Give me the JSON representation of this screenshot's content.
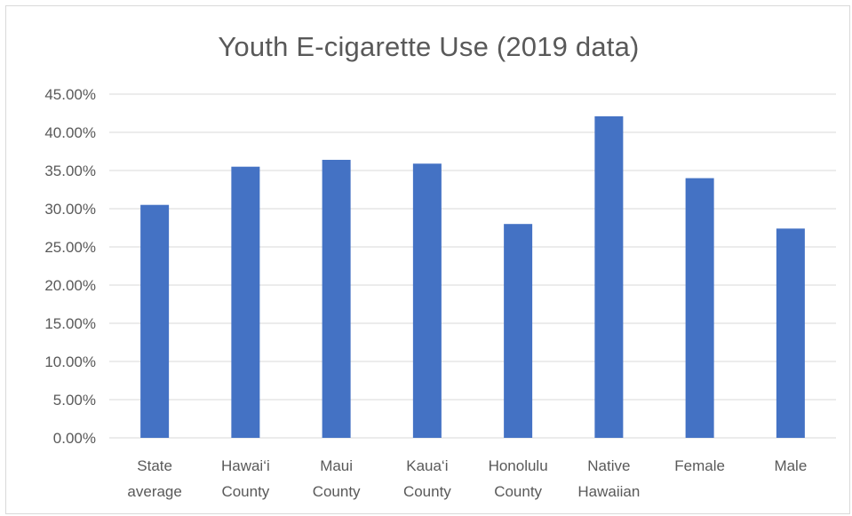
{
  "chart_data": {
    "type": "bar",
    "title": "Youth E-cigarette Use (2019 data)",
    "categories": [
      [
        "State",
        "average"
      ],
      [
        "Hawai‘i",
        "County"
      ],
      [
        "Maui",
        "County"
      ],
      [
        "Kaua‘i",
        "County"
      ],
      [
        "Honolulu",
        "County"
      ],
      [
        "Native",
        "Hawaiian"
      ],
      [
        "Female"
      ],
      [
        "Male"
      ]
    ],
    "values": [
      30.5,
      35.5,
      36.4,
      35.9,
      28.0,
      42.1,
      34.0,
      27.4
    ],
    "ylim": [
      0,
      45
    ],
    "yticks": [
      "0.00%",
      "5.00%",
      "10.00%",
      "15.00%",
      "20.00%",
      "25.00%",
      "30.00%",
      "35.00%",
      "40.00%",
      "45.00%"
    ],
    "ytick_values": [
      0,
      5,
      10,
      15,
      20,
      25,
      30,
      35,
      40,
      45
    ],
    "grid": true,
    "bar_color": "#4472c4",
    "grid_color": "#d9d9d9",
    "xlabel": "",
    "ylabel": ""
  }
}
